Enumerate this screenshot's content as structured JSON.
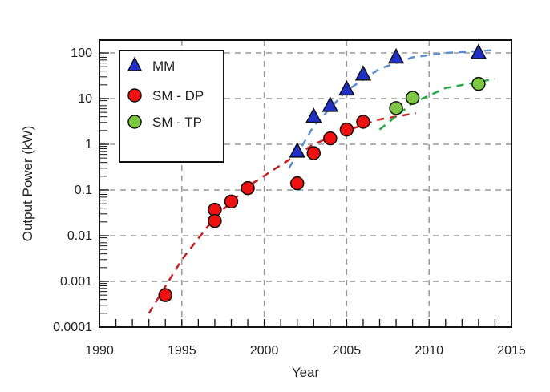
{
  "chart_data": {
    "type": "scatter",
    "xlabel": "Year",
    "ylabel": "Output Power (kW)",
    "xlim": [
      1990,
      2015
    ],
    "ylim": [
      0.0001,
      200
    ],
    "yscale": "log",
    "grid": true,
    "legend_position": "top-left",
    "x_ticks": [
      "1990",
      "1995",
      "2000",
      "2005",
      "2010",
      "2015"
    ],
    "y_ticks": [
      "0.0001",
      "0.001",
      "0.01",
      "0.1",
      "1",
      "10",
      "100"
    ],
    "series": [
      {
        "name": "MM",
        "marker": "triangle",
        "color": "#1f2fc8",
        "points": [
          [
            2002,
            0.7
          ],
          [
            2003,
            4
          ],
          [
            2004,
            7
          ],
          [
            2005,
            16
          ],
          [
            2006,
            34
          ],
          [
            2008,
            80
          ],
          [
            2013,
            100
          ]
        ],
        "trend_color": "#5b8fd0",
        "trend": [
          [
            2001.5,
            0.3
          ],
          [
            2003,
            2.5
          ],
          [
            2005,
            15
          ],
          [
            2007,
            45
          ],
          [
            2009,
            80
          ],
          [
            2011,
            100
          ],
          [
            2014,
            115
          ]
        ]
      },
      {
        "name": "SM - DP",
        "marker": "circle",
        "color": "#ee1111",
        "points": [
          [
            1994,
            0.0005
          ],
          [
            1997,
            0.037
          ],
          [
            1997,
            0.021
          ],
          [
            1998,
            0.056
          ],
          [
            1999,
            0.11
          ],
          [
            2002,
            0.14
          ],
          [
            2003,
            0.64
          ],
          [
            2004,
            1.35
          ],
          [
            2005,
            2.1
          ],
          [
            2006,
            3.1
          ]
        ],
        "trend_color": "#c82020",
        "trend": [
          [
            1993,
            0.0002
          ],
          [
            1995,
            0.003
          ],
          [
            1997,
            0.025
          ],
          [
            1999,
            0.12
          ],
          [
            2001,
            0.35
          ],
          [
            2003,
            1.0
          ],
          [
            2005,
            2.0
          ],
          [
            2007,
            3.5
          ],
          [
            2009.2,
            4.8
          ]
        ]
      },
      {
        "name": "SM - TP",
        "marker": "circle",
        "color": "#7cc843",
        "points": [
          [
            2008,
            6.2
          ],
          [
            2009,
            10.4
          ],
          [
            2013,
            21
          ]
        ],
        "trend_color": "#22aa44",
        "trend": [
          [
            2007,
            2.1
          ],
          [
            2009,
            8
          ],
          [
            2011,
            17
          ],
          [
            2014,
            27
          ]
        ]
      }
    ]
  }
}
